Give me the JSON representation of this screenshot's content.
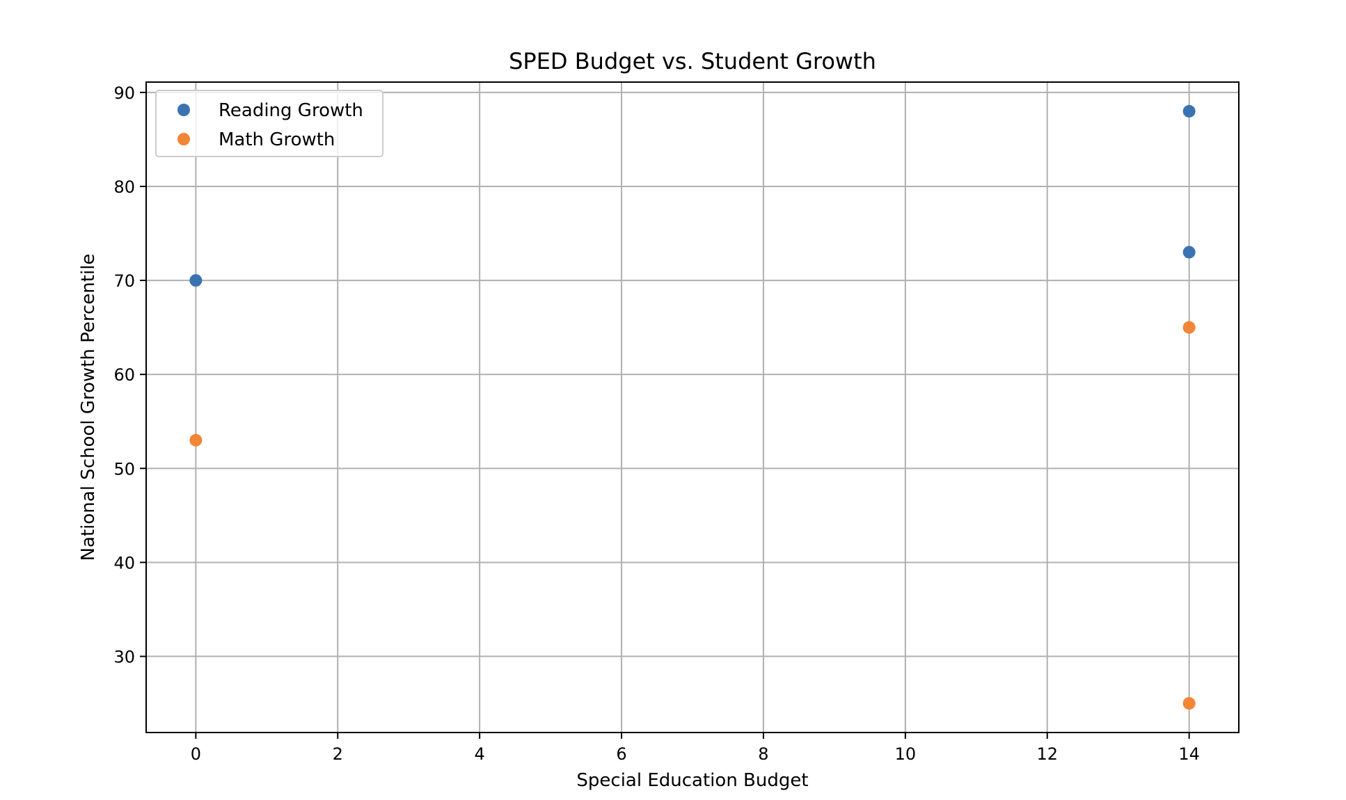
{
  "chart_data": {
    "type": "scatter",
    "title": "SPED Budget vs. Student Growth",
    "xlabel": "Special Education Budget",
    "ylabel": "National School Growth Percentile",
    "xlim": [
      -0.7,
      14.7
    ],
    "ylim": [
      21.9,
      91.1
    ],
    "xticks": [
      0,
      2,
      4,
      6,
      8,
      10,
      12,
      14
    ],
    "yticks": [
      30,
      40,
      50,
      60,
      70,
      80,
      90
    ],
    "grid": true,
    "legend_position": "top-left",
    "series": [
      {
        "name": "Reading Growth",
        "color": "#3a73b2",
        "points": [
          {
            "x": 0,
            "y": 70
          },
          {
            "x": 14,
            "y": 88
          },
          {
            "x": 14,
            "y": 73
          }
        ]
      },
      {
        "name": "Math Growth",
        "color": "#f28536",
        "points": [
          {
            "x": 0,
            "y": 53
          },
          {
            "x": 14,
            "y": 65
          },
          {
            "x": 14,
            "y": 25
          }
        ]
      }
    ]
  }
}
